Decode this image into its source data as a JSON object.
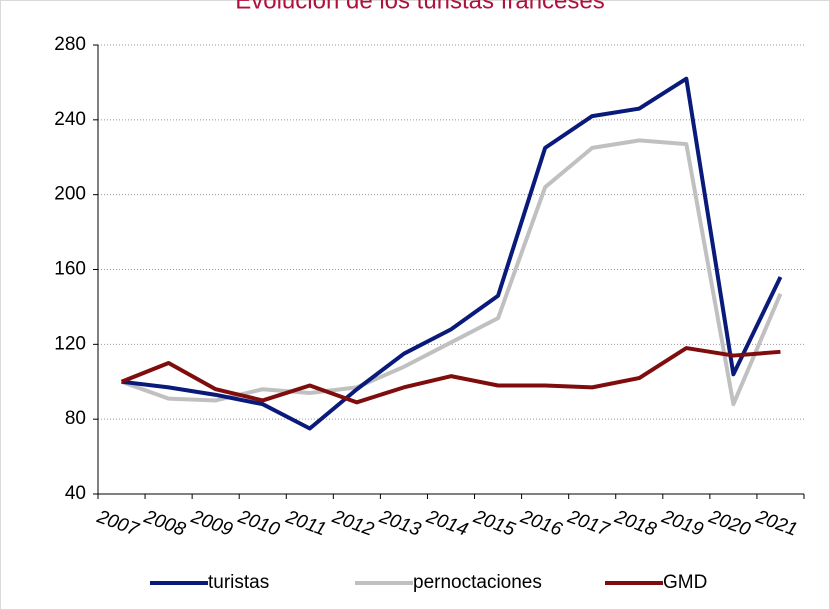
{
  "chart_data": {
    "type": "line",
    "title": "Evolución de los turistas franceses",
    "categories": [
      "2007",
      "2008",
      "2009",
      "2010",
      "2011",
      "2012",
      "2013",
      "2014",
      "2015",
      "2016",
      "2017",
      "2018",
      "2019",
      "2020",
      "2021"
    ],
    "series": [
      {
        "name": "turistas",
        "color": "#0a1a7a",
        "values": [
          100,
          97,
          93,
          88,
          75,
          96,
          115,
          128,
          146,
          225,
          242,
          246,
          262,
          104,
          156
        ]
      },
      {
        "name": "pernoctaciones",
        "color": "#c0c0c0",
        "values": [
          100,
          91,
          90,
          96,
          94,
          97,
          108,
          121,
          134,
          204,
          225,
          229,
          227,
          88,
          147
        ]
      },
      {
        "name": "GMD",
        "color": "#7f0d0d",
        "values": [
          100,
          110,
          96,
          90,
          98,
          89,
          97,
          103,
          98,
          98,
          97,
          102,
          118,
          114,
          116
        ]
      }
    ],
    "ylim": [
      40,
      280
    ],
    "yticks": [
      40,
      80,
      120,
      160,
      200,
      240,
      280
    ],
    "grid": true
  }
}
